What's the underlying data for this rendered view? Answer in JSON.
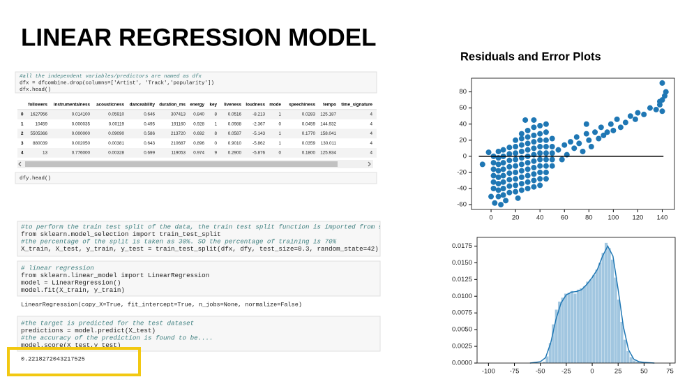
{
  "header": {
    "title": "LINEAR REGRESSION MODEL"
  },
  "section_title": "Residuals and Error Plots",
  "notebook": {
    "cells": [
      {
        "input": [
          "#all the independent variables/predictors are named as dfx",
          "dfx = dfcombine.drop(columns=['Artist', 'Track','popularity'])",
          "dfx.head()"
        ]
      },
      {
        "input": [
          "dfy.head()"
        ]
      },
      {
        "input": [
          "#to perform the train test split of the data, the train test split function is imported from s",
          "from sklearn.model_selection import train_test_split",
          "#the percentage of the split is taken as 30%. SO the percentage of training is 70%",
          "X_train, X_test, y_train, y_test = train_test_split(dfx, dfy, test_size=0.3, random_state=42)"
        ]
      },
      {
        "input": [
          "# linear regression",
          "from sklearn.linear_model import LinearRegression",
          "model = LinearRegression()",
          "model.fit(X_train, y_train)"
        ],
        "output": [
          "LinearRegression(copy_X=True, fit_intercept=True, n_jobs=None, normalize=False)"
        ]
      },
      {
        "input": [
          "#the target is predicted for the test dataset",
          "predictions = model.predict(X_test)",
          "#the accuracy of the prediction is found to be....",
          "model.score(X_test,y_test)"
        ],
        "output": [
          "0.2218272043217525"
        ]
      }
    ],
    "table": {
      "columns": [
        "followers",
        "instrumentalness",
        "acousticness",
        "danceability",
        "duration_ms",
        "energy",
        "key",
        "liveness",
        "loudness",
        "mode",
        "speechiness",
        "tempo",
        "time_signature"
      ],
      "rows": [
        [
          "0",
          "1627956",
          "0.014100",
          "0.05910",
          "0.646",
          "307413",
          "0.840",
          "8",
          "0.0516",
          "-8.213",
          "1",
          "0.0283",
          "125.187",
          "4"
        ],
        [
          "1",
          "10459",
          "0.000035",
          "0.00119",
          "0.495",
          "191160",
          "0.928",
          "1",
          "0.0988",
          "-2.367",
          "0",
          "0.0459",
          "144.932",
          "4"
        ],
        [
          "2",
          "5505366",
          "0.000000",
          "0.09090",
          "0.586",
          "213720",
          "0.692",
          "8",
          "0.0587",
          "-5.143",
          "1",
          "0.1770",
          "158.041",
          "4"
        ],
        [
          "3",
          "880039",
          "0.002050",
          "0.00381",
          "0.643",
          "210687",
          "0.896",
          "0",
          "0.9010",
          "-5.862",
          "1",
          "0.0359",
          "130.011",
          "4"
        ],
        [
          "4",
          "13",
          "0.776000",
          "0.00328",
          "0.699",
          "119053",
          "0.974",
          "9",
          "0.2900",
          "-5.876",
          "0",
          "0.1800",
          "125.934",
          "4"
        ]
      ]
    }
  },
  "chart_data": [
    {
      "type": "scatter",
      "color": "#1f77b4",
      "xlim": [
        -16,
        150
      ],
      "ylim": [
        -66,
        97
      ],
      "xticks": [
        0,
        20,
        40,
        60,
        80,
        100,
        120,
        140
      ],
      "yticks": [
        -60,
        -40,
        -20,
        0,
        20,
        40,
        60,
        80
      ],
      "hline": {
        "y": 0,
        "x": [
          -10,
          141
        ],
        "color": "#000000"
      },
      "x": [
        2,
        2,
        2,
        2,
        2,
        2,
        6,
        6,
        6,
        6,
        6,
        6,
        6,
        6,
        10,
        10,
        10,
        10,
        10,
        10,
        10,
        10,
        15,
        15,
        15,
        15,
        15,
        15,
        15,
        15,
        20,
        20,
        20,
        20,
        20,
        20,
        20,
        20,
        20,
        25,
        25,
        25,
        25,
        25,
        25,
        25,
        25,
        25,
        25,
        30,
        30,
        30,
        30,
        30,
        30,
        30,
        30,
        30,
        30,
        35,
        35,
        35,
        35,
        35,
        35,
        35,
        35,
        35,
        35,
        40,
        40,
        40,
        40,
        40,
        40,
        40,
        40,
        40,
        40,
        45,
        45,
        45,
        45,
        45,
        45,
        45,
        45,
        45,
        50,
        50,
        50,
        50,
        50,
        55,
        58,
        60,
        62,
        65,
        68,
        70,
        72,
        75,
        78,
        78,
        80,
        82,
        85,
        88,
        90,
        92,
        95,
        98,
        100,
        103,
        106,
        110,
        114,
        118,
        120,
        125,
        130,
        135,
        138,
        140,
        140,
        142,
        140,
        143,
        138,
        -7,
        -2,
        3,
        8,
        0,
        12,
        28,
        35,
        22
      ],
      "y": [
        -40,
        -32,
        -24,
        -16,
        -8,
        0,
        -50,
        -42,
        -34,
        -26,
        -18,
        -10,
        -2,
        6,
        -48,
        -40,
        -32,
        -24,
        -16,
        -8,
        0,
        8,
        -45,
        -37,
        -29,
        -21,
        -13,
        -5,
        3,
        11,
        -44,
        -36,
        -28,
        -20,
        -12,
        -4,
        4,
        12,
        20,
        -42,
        -34,
        -26,
        -18,
        -10,
        -2,
        6,
        14,
        22,
        28,
        -40,
        -32,
        -24,
        -16,
        -8,
        0,
        8,
        16,
        24,
        32,
        -38,
        -30,
        -22,
        -14,
        -6,
        2,
        10,
        18,
        26,
        36,
        -36,
        -28,
        -20,
        -12,
        -4,
        4,
        12,
        20,
        28,
        38,
        -28,
        -20,
        -12,
        -4,
        4,
        12,
        20,
        30,
        40,
        -12,
        -4,
        4,
        12,
        22,
        8,
        -4,
        14,
        2,
        18,
        10,
        24,
        16,
        6,
        28,
        40,
        20,
        12,
        30,
        22,
        36,
        26,
        30,
        40,
        32,
        46,
        36,
        42,
        50,
        46,
        54,
        52,
        60,
        58,
        64,
        56,
        70,
        75,
        91,
        80,
        68,
        -10,
        5,
        -58,
        -60,
        -50,
        -55,
        45,
        45,
        -52
      ]
    },
    {
      "type": "histogram",
      "color": "#1f77b4",
      "xlim": [
        -111,
        80
      ],
      "ylim": [
        0,
        0.0188
      ],
      "xticks": [
        -100,
        -75,
        -50,
        -25,
        0,
        25,
        50,
        75
      ],
      "yticks": [
        {
          "value": 0,
          "label": "0.0000"
        },
        {
          "value": 0.0025,
          "label": "0.0025"
        },
        {
          "value": 0.005,
          "label": "0.0050"
        },
        {
          "value": 0.0075,
          "label": "0.0075"
        },
        {
          "value": 0.01,
          "label": "0.0100"
        },
        {
          "value": 0.0125,
          "label": "0.0125"
        },
        {
          "value": 0.015,
          "label": "0.0150"
        },
        {
          "value": 0.0175,
          "label": "0.0175"
        }
      ],
      "bins": [
        -48,
        -45,
        -42,
        -39,
        -36,
        -33,
        -30,
        -27,
        -24,
        -21,
        -18,
        -15,
        -12,
        -9,
        -6,
        -3,
        0,
        3,
        6,
        9,
        12,
        15,
        18,
        21,
        24,
        27,
        30,
        33,
        36,
        39,
        42,
        45,
        48
      ],
      "values": [
        0.0002,
        0.001,
        0.003,
        0.0058,
        0.008,
        0.0092,
        0.0098,
        0.0104,
        0.0105,
        0.0108,
        0.0104,
        0.011,
        0.0112,
        0.0115,
        0.0122,
        0.0125,
        0.0132,
        0.014,
        0.015,
        0.0165,
        0.018,
        0.0172,
        0.0155,
        0.0128,
        0.0095,
        0.0062,
        0.0035,
        0.0018,
        0.0009,
        0.0004,
        0.0002,
        0.0001
      ],
      "kde": {
        "x": [
          -60,
          -50,
          -45,
          -40,
          -35,
          -30,
          -25,
          -20,
          -15,
          -10,
          -5,
          0,
          5,
          10,
          15,
          20,
          25,
          30,
          35,
          40,
          45,
          50,
          60
        ],
        "y": [
          0,
          0.0002,
          0.0008,
          0.003,
          0.0065,
          0.009,
          0.0102,
          0.0106,
          0.0107,
          0.011,
          0.0118,
          0.0128,
          0.014,
          0.016,
          0.0175,
          0.016,
          0.011,
          0.0055,
          0.002,
          0.0006,
          0.0002,
          0.0001,
          0
        ]
      }
    }
  ]
}
